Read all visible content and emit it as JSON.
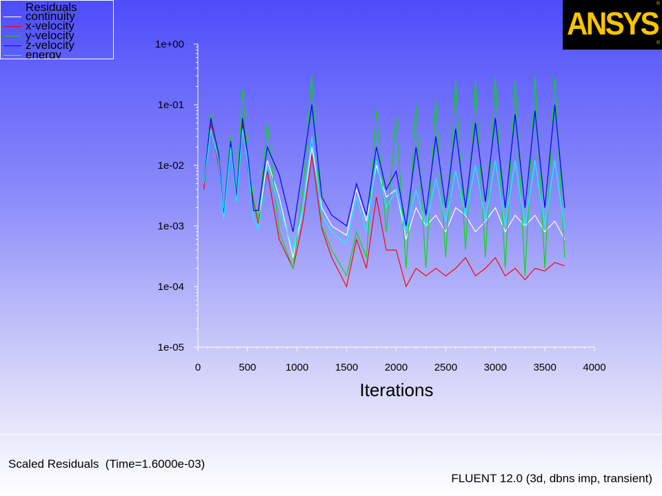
{
  "chart_data": {
    "type": "line",
    "title": "Scaled Residuals  (Time=1.6000e-03)",
    "xlabel": "Iterations",
    "ylabel": "",
    "xlim": [
      0,
      4000
    ],
    "ylim": [
      1e-05,
      1
    ],
    "yscale": "log",
    "x_ticks": [
      0,
      500,
      1000,
      1500,
      2000,
      2500,
      3000,
      3500,
      4000
    ],
    "x_tick_labels": [
      "0",
      "500",
      "1000",
      "1500",
      "2000",
      "2500",
      "3000",
      "3500",
      "4000"
    ],
    "y_ticks": [
      1e-05,
      0.0001,
      0.001,
      0.01,
      0.1,
      1
    ],
    "y_tick_labels": [
      "1e-05",
      "1e-04",
      "1e-03",
      "1e-02",
      "1e-01",
      "1e+00"
    ],
    "legend_title": "Residuals",
    "legend_position": "top-left",
    "series": [
      {
        "name": "continuity",
        "color": "#ffffff",
        "x": [
          60,
          130,
          210,
          260,
          330,
          390,
          450,
          510,
          560,
          610,
          700,
          820,
          960,
          1060,
          1150,
          1250,
          1350,
          1500,
          1600,
          1700,
          1800,
          1900,
          2000,
          2100,
          2200,
          2300,
          2400,
          2500,
          2600,
          2700,
          2800,
          2900,
          3000,
          3100,
          3200,
          3300,
          3400,
          3500,
          3600,
          3700
        ],
        "y": [
          0.005,
          0.04,
          0.012,
          0.0018,
          0.02,
          0.003,
          0.04,
          0.01,
          0.003,
          0.0012,
          0.012,
          0.003,
          0.0003,
          0.002,
          0.02,
          0.002,
          0.001,
          0.0007,
          0.004,
          0.0012,
          0.01,
          0.003,
          0.004,
          0.0006,
          0.002,
          0.001,
          0.0015,
          0.0008,
          0.002,
          0.0015,
          0.0008,
          0.0012,
          0.002,
          0.0008,
          0.0015,
          0.001,
          0.0015,
          0.0008,
          0.0012,
          0.0006
        ]
      },
      {
        "name": "x-velocity",
        "color": "#ff0000",
        "x": [
          60,
          130,
          210,
          260,
          330,
          390,
          450,
          510,
          560,
          610,
          700,
          820,
          960,
          1060,
          1150,
          1250,
          1350,
          1500,
          1600,
          1700,
          1800,
          1900,
          2000,
          2100,
          2200,
          2300,
          2400,
          2500,
          2600,
          2700,
          2800,
          2900,
          3000,
          3100,
          3200,
          3300,
          3400,
          3500,
          3600,
          3700
        ],
        "y": [
          0.004,
          0.05,
          0.01,
          0.0015,
          0.02,
          0.0025,
          0.05,
          0.008,
          0.0025,
          0.0011,
          0.008,
          0.0006,
          0.0002,
          0.0012,
          0.015,
          0.0009,
          0.0003,
          0.0001,
          0.0006,
          0.0002,
          0.003,
          0.0004,
          0.0004,
          0.0001,
          0.0002,
          0.00015,
          0.0002,
          0.00015,
          0.0002,
          0.0003,
          0.00015,
          0.0002,
          0.0003,
          0.00015,
          0.0002,
          0.00013,
          0.0002,
          0.00018,
          0.00025,
          0.00022
        ]
      },
      {
        "name": "y-velocity",
        "color": "#00e000",
        "x": [
          60,
          130,
          210,
          260,
          330,
          390,
          450,
          510,
          560,
          610,
          700,
          820,
          960,
          1060,
          1150,
          1250,
          1350,
          1500,
          1600,
          1700,
          1800,
          1900,
          2000,
          2100,
          2200,
          2300,
          2400,
          2500,
          2600,
          2700,
          2800,
          2900,
          3000,
          3100,
          3200,
          3300,
          3400,
          3500,
          3600,
          3700
        ],
        "y": [
          0.005,
          0.07,
          0.012,
          0.0016,
          0.03,
          0.003,
          0.18,
          0.01,
          0.003,
          0.0012,
          0.05,
          0.0008,
          0.0002,
          0.004,
          0.3,
          0.001,
          0.0004,
          0.00015,
          0.0008,
          0.0003,
          0.08,
          0.0008,
          0.06,
          0.0002,
          0.1,
          0.0002,
          0.12,
          0.0003,
          0.25,
          0.0004,
          0.25,
          0.0003,
          0.28,
          0.0002,
          0.25,
          0.00015,
          0.28,
          0.0002,
          0.28,
          0.0003
        ]
      },
      {
        "name": "z-velocity",
        "color": "#0000ff",
        "x": [
          60,
          130,
          210,
          260,
          330,
          390,
          450,
          510,
          560,
          610,
          700,
          820,
          960,
          1060,
          1150,
          1250,
          1350,
          1500,
          1600,
          1700,
          1800,
          1900,
          2000,
          2100,
          2200,
          2300,
          2400,
          2500,
          2600,
          2700,
          2800,
          2900,
          3000,
          3100,
          3200,
          3300,
          3400,
          3500,
          3600,
          3700
        ],
        "y": [
          0.005,
          0.06,
          0.015,
          0.0015,
          0.025,
          0.003,
          0.06,
          0.012,
          0.0018,
          0.0018,
          0.02,
          0.007,
          0.0008,
          0.01,
          0.1,
          0.003,
          0.0015,
          0.001,
          0.005,
          0.0015,
          0.02,
          0.004,
          0.008,
          0.001,
          0.02,
          0.0015,
          0.03,
          0.002,
          0.04,
          0.002,
          0.05,
          0.0025,
          0.06,
          0.002,
          0.07,
          0.002,
          0.08,
          0.002,
          0.1,
          0.002
        ]
      },
      {
        "name": "energy",
        "color": "#00ffff",
        "x": [
          60,
          130,
          210,
          260,
          330,
          390,
          450,
          510,
          560,
          610,
          700,
          820,
          960,
          1060,
          1150,
          1250,
          1350,
          1500,
          1600,
          1700,
          1800,
          1900,
          2000,
          2100,
          2200,
          2300,
          2400,
          2500,
          2600,
          2700,
          2800,
          2900,
          3000,
          3100,
          3200,
          3300,
          3400,
          3500,
          3600,
          3700
        ],
        "y": [
          0.005,
          0.04,
          0.012,
          0.0013,
          0.02,
          0.0025,
          0.04,
          0.009,
          0.0013,
          0.0009,
          0.01,
          0.002,
          0.0004,
          0.002,
          0.03,
          0.0015,
          0.0008,
          0.0005,
          0.003,
          0.0008,
          0.012,
          0.002,
          0.004,
          0.0008,
          0.004,
          0.001,
          0.006,
          0.0012,
          0.008,
          0.0015,
          0.01,
          0.0012,
          0.012,
          0.001,
          0.012,
          0.001,
          0.012,
          0.001,
          0.012,
          0.0009
        ]
      }
    ]
  },
  "logo": {
    "text": "ANSYS"
  },
  "solver_info": "FLUENT 12.0 (3d, dbns imp, transient)"
}
